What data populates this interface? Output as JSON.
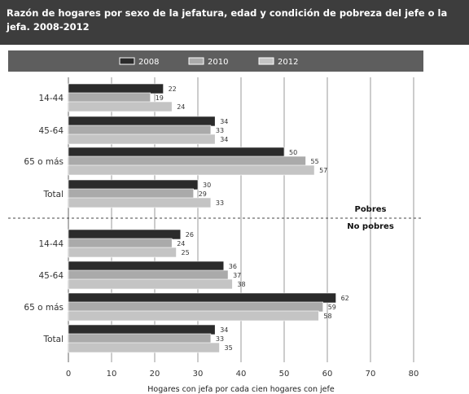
{
  "header": {
    "title": "Razón de hogares por sexo de la jefatura, edad y condición de pobreza del jefe o la jefa. 2008-2012"
  },
  "colors": {
    "2008": "#2b2b2b",
    "2010": "#aaaaaa",
    "2012": "#c4c4c4",
    "title_bg": "#3d3d3d",
    "legend_bg": "#5e5e5e"
  },
  "chart_data": {
    "type": "bar",
    "orientation": "horizontal",
    "title": "Razón de hogares por sexo de la jefatura, edad y condición de pobreza del jefe o la jefa. 2008-2012",
    "xlabel": "Hogares con jefa por cada cien hogares con jefe",
    "xlim": [
      0,
      80
    ],
    "xticks": [
      0,
      10,
      20,
      30,
      40,
      50,
      60,
      70,
      80
    ],
    "grid": true,
    "legend_position": "top",
    "groups": [
      {
        "name": "Pobres",
        "categories": [
          "14-44",
          "45-64",
          "65 o más",
          "Total"
        ]
      },
      {
        "name": "No pobres",
        "categories": [
          "14-44",
          "45-64",
          "65 o más",
          "Total"
        ]
      }
    ],
    "series": [
      {
        "name": "2008",
        "values": [
          22,
          34,
          50,
          30,
          26,
          36,
          62,
          34
        ]
      },
      {
        "name": "2010",
        "values": [
          19,
          33,
          55,
          29,
          24,
          37,
          59,
          33
        ]
      },
      {
        "name": "2012",
        "values": [
          24,
          34,
          57,
          33,
          25,
          38,
          58,
          35
        ]
      }
    ]
  }
}
